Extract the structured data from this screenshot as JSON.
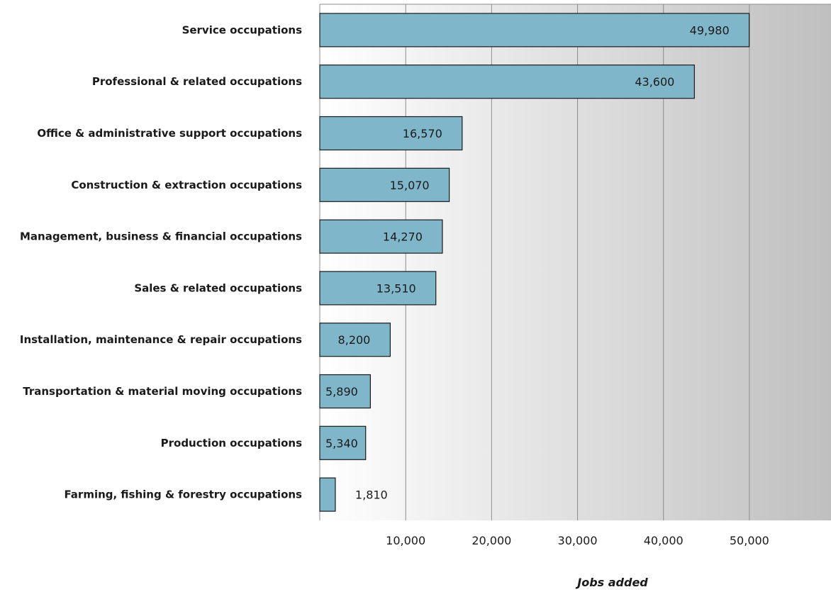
{
  "chart_data": {
    "type": "bar",
    "orientation": "horizontal",
    "categories": [
      "Service occupations",
      "Professional & related occupations",
      "Office & administrative support occupations",
      "Construction & extraction occupations",
      "Management, business & financial occupations",
      "Sales & related occupations",
      "Installation, maintenance & repair occupations",
      "Transportation & material moving occupations",
      "Production occupations",
      "Farming, fishing & forestry occupations"
    ],
    "values": [
      49980,
      43600,
      16570,
      15070,
      14270,
      13510,
      8200,
      5890,
      5340,
      1810
    ],
    "value_labels": [
      "49,980",
      "43,600",
      "16,570",
      "15,070",
      "14,270",
      "13,510",
      "8,200",
      "5,890",
      "5,340",
      "1,810"
    ],
    "xticks": [
      10000,
      20000,
      30000,
      40000,
      50000
    ],
    "xtick_labels": [
      "10,000",
      "20,000",
      "30,000",
      "40,000",
      "50,000"
    ],
    "xlim": [
      0,
      59500
    ],
    "xlabel": "Jobs added",
    "ylabel": "",
    "title": "",
    "grid": true,
    "legend": "none",
    "colors": {
      "bar_fill": "#7fb6ca",
      "bar_stroke": "#1a1a1a",
      "plot_bg_start": "#ffffff",
      "plot_bg_end": "#bfbfbf",
      "gridline": "#8c8c8c",
      "text": "#1a1a1a"
    }
  }
}
